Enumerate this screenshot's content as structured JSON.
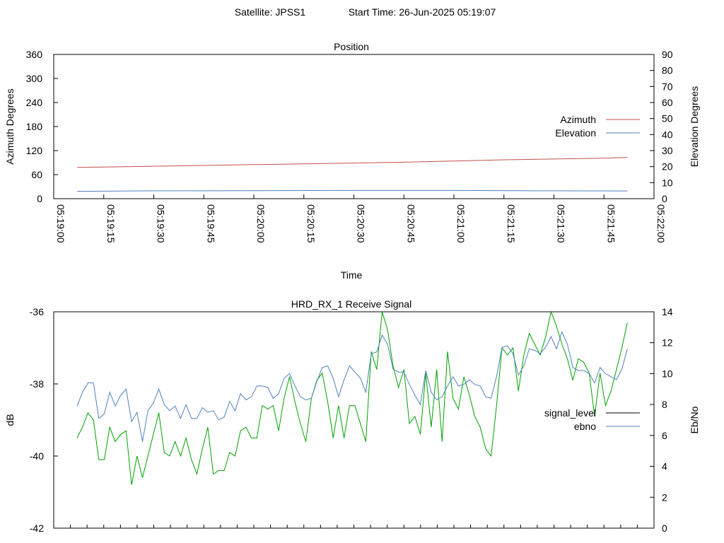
{
  "header": {
    "satellite": "Satellite: JPSS1",
    "start_time": "Start Time: 26-Jun-2025 05:19:07"
  },
  "chart_data": [
    {
      "type": "line",
      "title": "Position",
      "xlabel": "Time",
      "ylabel_left": "Azimuth Degrees",
      "ylabel_right": "Elevation Degrees",
      "ylim_left": [
        0,
        360
      ],
      "ylim_right": [
        0,
        90
      ],
      "xlim": [
        "05:19:00",
        "05:22:00"
      ],
      "yticks_left": [
        "0",
        "60",
        "120",
        "180",
        "240",
        "300",
        "360"
      ],
      "yticks_right": [
        "0",
        "10",
        "20",
        "30",
        "40",
        "50",
        "60",
        "70",
        "80",
        "90"
      ],
      "xticks": [
        "05:19:00",
        "05:19:15",
        "05:19:30",
        "05:19:45",
        "05:20:00",
        "05:20:15",
        "05:20:30",
        "05:20:45",
        "05:21:00",
        "05:21:15",
        "05:21:30",
        "05:21:45",
        "05:22:00"
      ],
      "legend_position": "right",
      "grid": false,
      "series": [
        {
          "name": "Azimuth",
          "axis": "left",
          "color": "#c0504d",
          "x": [
            "05:19:07",
            "05:19:15",
            "05:19:30",
            "05:19:45",
            "05:20:00",
            "05:20:15",
            "05:20:30",
            "05:20:45",
            "05:21:00",
            "05:21:15",
            "05:21:30",
            "05:21:45",
            "05:21:52"
          ],
          "values": [
            78,
            79,
            81,
            83,
            85,
            87,
            89,
            91,
            94,
            97,
            99,
            101,
            103
          ]
        },
        {
          "name": "Elevation",
          "axis": "right",
          "color": "#4f81bd",
          "x": [
            "05:19:07",
            "05:19:30",
            "05:20:00",
            "05:20:30",
            "05:21:00",
            "05:21:30",
            "05:21:52"
          ],
          "values": [
            4.6,
            4.9,
            5.0,
            5.1,
            5.1,
            4.9,
            4.8
          ]
        }
      ]
    },
    {
      "type": "line",
      "title": "HRD_RX_1 Receive Signal",
      "xlabel": "",
      "ylabel_left": "dB",
      "ylabel_right": "Eb/No",
      "ylim_left": [
        -42,
        -36
      ],
      "ylim_right": [
        0,
        14
      ],
      "yticks_left": [
        "-36",
        "-38",
        "-40",
        "-42"
      ],
      "yticks_right": [
        "0",
        "2",
        "4",
        "6",
        "8",
        "10",
        "12",
        "14"
      ],
      "legend_position": "right",
      "grid": false,
      "series": [
        {
          "name": "signal_level",
          "axis": "left",
          "color": "#00a000",
          "x_range": [
            "05:19:07",
            "05:21:52"
          ],
          "values": [
            -39.5,
            -39.2,
            -38.8,
            -39.0,
            -40.1,
            -40.1,
            -39.2,
            -39.6,
            -39.4,
            -39.3,
            -40.8,
            -40.0,
            -40.6,
            -40.0,
            -39.4,
            -38.8,
            -39.9,
            -40.0,
            -39.6,
            -40.0,
            -39.5,
            -40.1,
            -40.5,
            -39.8,
            -39.2,
            -40.5,
            -40.4,
            -40.4,
            -39.9,
            -40.0,
            -39.3,
            -39.2,
            -39.5,
            -39.5,
            -38.6,
            -38.7,
            -38.6,
            -39.3,
            -38.4,
            -37.8,
            -38.5,
            -39.1,
            -39.6,
            -38.4,
            -37.9,
            -37.7,
            -38.5,
            -39.5,
            -38.6,
            -39.5,
            -38.6,
            -38.6,
            -39.1,
            -39.6,
            -37.1,
            -37.6,
            -36.0,
            -36.5,
            -37.5,
            -38.1,
            -37.6,
            -39.1,
            -38.9,
            -39.4,
            -37.7,
            -39.2,
            -37.6,
            -39.6,
            -37.1,
            -38.4,
            -38.7,
            -37.8,
            -38.3,
            -38.9,
            -39.2,
            -39.8,
            -40.0,
            -38.6,
            -37.0,
            -37.2,
            -37.0,
            -38.2,
            -37.2,
            -36.6,
            -36.9,
            -37.2,
            -36.7,
            -36.0,
            -36.4,
            -36.9,
            -37.3,
            -37.9,
            -37.3,
            -37.4,
            -37.7,
            -38.9,
            -37.7,
            -38.6,
            -38.2,
            -37.6,
            -37.0,
            -36.3
          ]
        },
        {
          "name": "ebno",
          "axis": "right",
          "color": "#4f81bd",
          "x_range": [
            "05:19:07",
            "05:21:52"
          ],
          "values": [
            7.9,
            8.8,
            9.4,
            9.4,
            7.1,
            7.4,
            8.8,
            7.9,
            8.6,
            9.0,
            6.9,
            7.5,
            5.6,
            7.6,
            8.1,
            9.0,
            8.0,
            7.6,
            7.9,
            7.1,
            8.0,
            7.1,
            7.1,
            7.8,
            7.5,
            7.6,
            7.0,
            7.2,
            8.2,
            7.6,
            8.7,
            8.3,
            8.5,
            9.2,
            9.2,
            9.1,
            8.4,
            8.7,
            9.7,
            10.0,
            9.2,
            8.5,
            8.3,
            8.4,
            9.5,
            10.4,
            10.5,
            9.7,
            8.5,
            9.6,
            10.5,
            10.1,
            9.7,
            8.8,
            11.3,
            11.4,
            12.5,
            11.9,
            10.3,
            10.1,
            10.1,
            9.3,
            8.6,
            8.0,
            10.2,
            8.8,
            8.3,
            8.5,
            9.2,
            9.8,
            9.2,
            9.3,
            9.6,
            9.3,
            9.2,
            8.5,
            8.4,
            9.8,
            11.7,
            11.8,
            11.3,
            9.9,
            10.5,
            11.6,
            11.5,
            11.3,
            11.7,
            12.4,
            11.6,
            12.7,
            11.9,
            10.4,
            10.2,
            10.2,
            10.0,
            9.4,
            10.4,
            10.0,
            9.8,
            9.6,
            10.3,
            11.6
          ]
        }
      ]
    }
  ]
}
